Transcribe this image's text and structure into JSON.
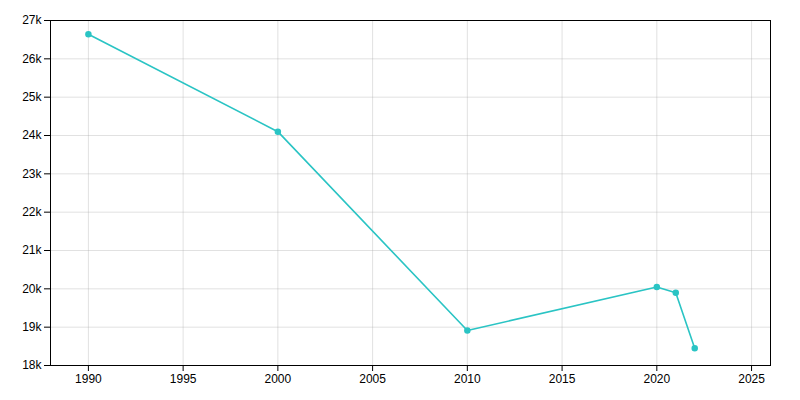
{
  "chart_data": {
    "type": "line",
    "x": [
      1990,
      2000,
      2010,
      2020,
      2021,
      2022
    ],
    "values": [
      26640,
      24100,
      18912,
      20050,
      19900,
      18450
    ],
    "color": "#2AC4C4",
    "marker": "circle",
    "xlim": [
      1988,
      2026
    ],
    "xticks": [
      1990,
      1995,
      2000,
      2005,
      2010,
      2015,
      2020,
      2025
    ],
    "ylim": [
      18000,
      27000
    ],
    "yticks": [
      {
        "value": 18000,
        "label": "18k"
      },
      {
        "value": 19000,
        "label": "19k"
      },
      {
        "value": 20000,
        "label": "20k"
      },
      {
        "value": 21000,
        "label": "21k"
      },
      {
        "value": 22000,
        "label": "22k"
      },
      {
        "value": 23000,
        "label": "23k"
      },
      {
        "value": 24000,
        "label": "24k"
      },
      {
        "value": 25000,
        "label": "25k"
      },
      {
        "value": 26000,
        "label": "26k"
      },
      {
        "value": 27000,
        "label": "27k"
      }
    ],
    "grid": true
  }
}
